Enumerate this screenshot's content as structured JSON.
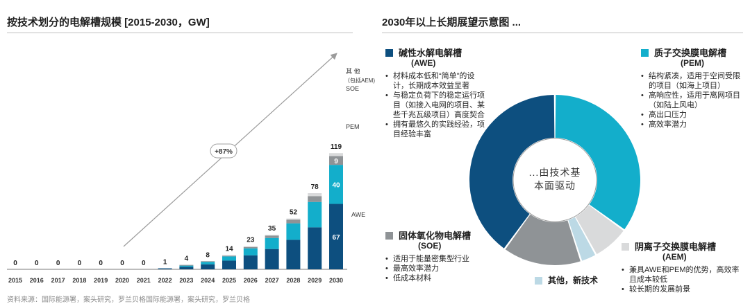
{
  "left_title": "按技术划分的电解槽规模 [2015-2030，GW]",
  "right_title": "2030年以上长期展望示意图 ...",
  "source": "资料来源：国际能源署，案头研究，罗兰贝格国际能源署，案头研究，罗兰贝格",
  "colors": {
    "awe": "#0d4f7f",
    "pem": "#13aecb",
    "soe": "#8f9396",
    "aem": "#d9dadb",
    "other": "#bcd9e5",
    "arrow": "#9b9b9b",
    "axis": "#7a7a7a"
  },
  "chart_data": [
    {
      "type": "bar",
      "stacked": true,
      "title": "按技术划分的电解槽规模 [2015-2030，GW]",
      "categories": [
        "2015",
        "2016",
        "2017",
        "2018",
        "2019",
        "2020",
        "2021",
        "2022",
        "2023",
        "2024",
        "2025",
        "2026",
        "2027",
        "2028",
        "2029",
        "2030"
      ],
      "totals": [
        0,
        0,
        0,
        0,
        0,
        0,
        0,
        1,
        4,
        8,
        14,
        23,
        35,
        52,
        78,
        119
      ],
      "series": [
        {
          "name": "AWE",
          "values": [
            0,
            0,
            0,
            0,
            0,
            0,
            0,
            1,
            2.6,
            5.1,
            8.9,
            14.3,
            20.8,
            30.2,
            43,
            67
          ]
        },
        {
          "name": "PEM",
          "values": [
            0,
            0,
            0,
            0,
            0,
            0,
            0,
            0,
            1.2,
            2.5,
            4.3,
            7.2,
            11.3,
            16.9,
            26,
            40
          ]
        },
        {
          "name": "SOE",
          "values": [
            0,
            0,
            0,
            0,
            0,
            0,
            0,
            0,
            0.2,
            0.4,
            0.7,
            1.4,
            2.5,
            3.8,
            6,
            9
          ]
        },
        {
          "name": "其他（包括AEM)",
          "values": [
            0,
            0,
            0,
            0,
            0,
            0,
            0,
            0,
            0,
            0,
            0.1,
            0.1,
            0.4,
            1.1,
            3,
            3
          ]
        }
      ],
      "segment_labels_2030": {
        "AWE": "67",
        "PEM": "40",
        "SOE": "9"
      },
      "legend": {
        "other_line1": "其 他",
        "other_line2": "（包括AEM)",
        "soe": "SOE",
        "pem": "PEM",
        "awe": "AWE"
      },
      "growth_annotation": "+87%",
      "ylim": [
        0,
        125
      ]
    },
    {
      "type": "pie",
      "title": "2030年以上长期展望示意图 ...",
      "donut": true,
      "center_text": [
        "...由技术基",
        "本面驱动"
      ],
      "labels": [
        "质子交换膜电解槽 (PEM)",
        "阴离子交换膜电解槽 (AEM)",
        "其他，新技术",
        "固体氧化物电解槽 (SOE)",
        "碱性水解电解槽 (AWE)"
      ],
      "values": [
        35,
        7,
        3,
        15,
        40
      ]
    }
  ],
  "technologies": {
    "awe": {
      "name": "碱性水解电解槽",
      "abbr": "(AWE)",
      "points": [
        "材料成本低和“简单”的设计，长期成本效益显著",
        "与稳定负荷下的稳定运行项目（如接入电网的项目、某些千兆瓦级项目）高度契合",
        "拥有最悠久的实践经验，项目经验丰富"
      ]
    },
    "pem": {
      "name": "质子交换膜电解槽",
      "abbr": "(PEM)",
      "points": [
        "结构紧凑，适用于空间受限的项目（如海上项目）",
        "高响应性，适用于离网项目（如陆上风电）",
        "高出口压力",
        "高效率潜力"
      ]
    },
    "soe": {
      "name": "固体氧化物电解槽",
      "abbr": "(SOE)",
      "points": [
        "适用于能量密集型行业",
        "最高效率潜力",
        "低成本材料"
      ]
    },
    "aem": {
      "name": "阴离子交换膜电解槽",
      "abbr": "(AEM)",
      "points": [
        "兼具AWE和PEM的优势，高效率且成本较低",
        "较长期的发展前景"
      ]
    },
    "other": {
      "name": "其他，新技术"
    }
  }
}
